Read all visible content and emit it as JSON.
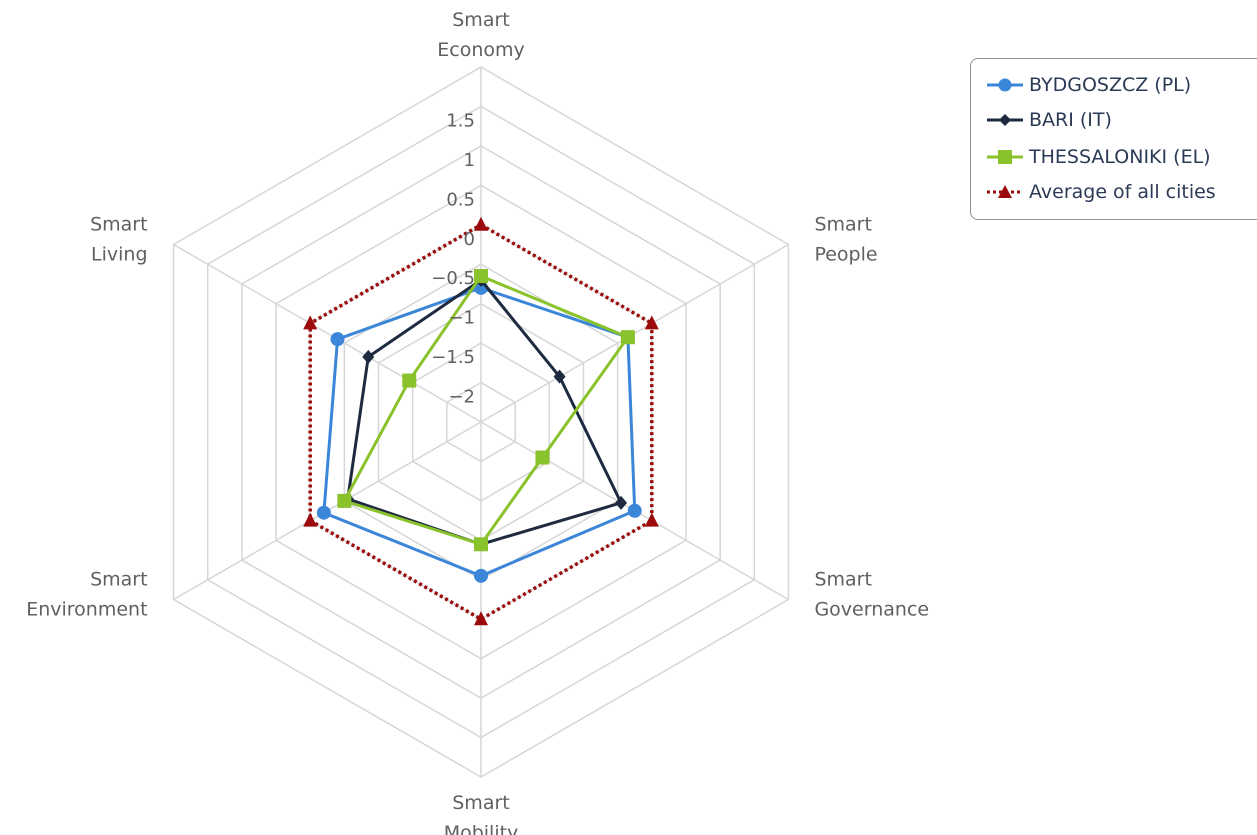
{
  "chart_data": {
    "type": "radar",
    "axes": [
      "Smart Economy",
      "Smart People",
      "Smart Governance",
      "Smart Mobility",
      "Smart Environment",
      "Smart Living"
    ],
    "axis_label_lines": [
      [
        "Smart",
        "Economy"
      ],
      [
        "Smart",
        "People"
      ],
      [
        "Smart",
        "Governance"
      ],
      [
        "Smart",
        "Mobility"
      ],
      [
        "Smart",
        "Environment"
      ],
      [
        "Smart",
        "Living"
      ]
    ],
    "radial_range": [
      -2.5,
      2
    ],
    "radial_ticks": [
      -2,
      -1.5,
      -1,
      -0.5,
      0,
      0.5,
      1,
      1.5
    ],
    "tick_labels": [
      "−2",
      "−1.5",
      "−1",
      "−0.5",
      "0",
      "0.5",
      "1",
      "1.5"
    ],
    "grid": true,
    "legend_position": "top-right",
    "series": [
      {
        "name": "BYDGOSZCZ (PL)",
        "color": "#3b86d8",
        "marker": "circle",
        "line": "solid",
        "values": [
          -0.8,
          -0.35,
          -0.25,
          -0.55,
          -0.2,
          -0.4
        ]
      },
      {
        "name": "BARI (IT)",
        "color": "#1d2a3f",
        "marker": "diamond",
        "line": "solid",
        "values": [
          -0.7,
          -1.35,
          -0.45,
          -0.95,
          -0.55,
          -0.85
        ]
      },
      {
        "name": "THESSALONIKI (EL)",
        "color": "#8ac22b",
        "marker": "square",
        "line": "solid",
        "values": [
          -0.65,
          -0.35,
          -1.6,
          -0.95,
          -0.5,
          -1.45
        ]
      },
      {
        "name": "Average of all cities",
        "color": "#9b0b0b",
        "marker": "triangle",
        "line": "dotted",
        "values": [
          0,
          0,
          0,
          0,
          0,
          0
        ]
      }
    ]
  }
}
